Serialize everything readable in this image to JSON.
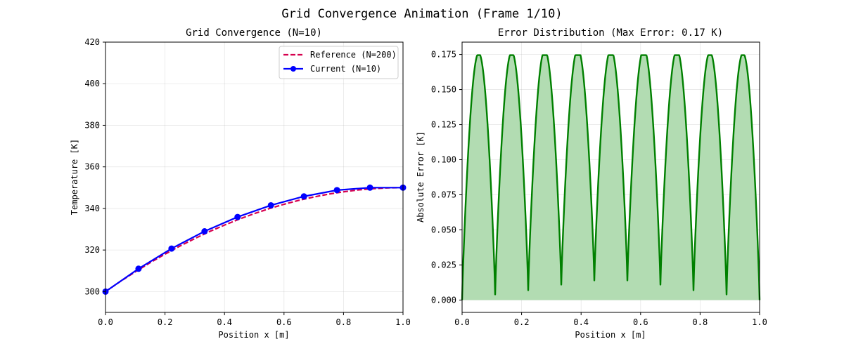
{
  "figure": {
    "suptitle": "Grid Convergence Animation (Frame 1/10)"
  },
  "chart_data": [
    {
      "type": "line",
      "title": "Grid Convergence (N=10)",
      "xlabel": "Position x [m]",
      "ylabel": "Temperature [K]",
      "xlim": [
        0,
        1
      ],
      "ylim": [
        290,
        420
      ],
      "xticks": [
        "0.0",
        "0.2",
        "0.4",
        "0.6",
        "0.8",
        "1.0"
      ],
      "yticks": [
        "300",
        "320",
        "340",
        "360",
        "380",
        "400",
        "420"
      ],
      "grid": true,
      "legend_position": "top-right",
      "series": [
        {
          "name": "Reference (N=200)",
          "style": "dashed",
          "color": "#d6004e",
          "x": [
            0.0,
            0.05,
            0.1,
            0.15,
            0.2,
            0.25,
            0.3,
            0.35,
            0.4,
            0.45,
            0.5,
            0.55,
            0.6,
            0.65,
            0.7,
            0.75,
            0.8,
            0.85,
            0.9,
            0.95,
            1.0
          ],
          "y": [
            300.0,
            304.9,
            309.5,
            313.9,
            318.0,
            321.9,
            325.5,
            328.9,
            332.0,
            334.9,
            337.5,
            339.9,
            342.0,
            343.9,
            345.5,
            346.9,
            348.0,
            348.9,
            349.5,
            349.9,
            350.0
          ]
        },
        {
          "name": "Current (N=10)",
          "style": "solid-markers",
          "color": "#0000ff",
          "x": [
            0.0,
            0.111,
            0.222,
            0.333,
            0.444,
            0.556,
            0.667,
            0.778,
            0.889,
            1.0
          ],
          "y": [
            300.0,
            311.0,
            320.7,
            329.0,
            335.9,
            341.5,
            345.8,
            348.8,
            350.0,
            350.0
          ]
        }
      ]
    },
    {
      "type": "area",
      "title": "Error Distribution (Max Error: 0.17 K)",
      "xlabel": "Position x [m]",
      "ylabel": "Absolute Error [K]",
      "xlim": [
        0,
        1
      ],
      "ylim": [
        -0.0088,
        0.1838
      ],
      "xticks": [
        "0.0",
        "0.2",
        "0.4",
        "0.6",
        "0.8",
        "1.0"
      ],
      "yticks": [
        "0.000",
        "0.025",
        "0.050",
        "0.075",
        "0.100",
        "0.125",
        "0.150",
        "0.175"
      ],
      "grid": true,
      "line_color": "#008000",
      "fill_color": "#b2dcb2",
      "segments": 9,
      "peak_error": 0.1745,
      "node_errors": [
        0.0,
        0.004,
        0.007,
        0.011,
        0.014,
        0.014,
        0.011,
        0.007,
        0.004,
        0.0
      ]
    }
  ]
}
